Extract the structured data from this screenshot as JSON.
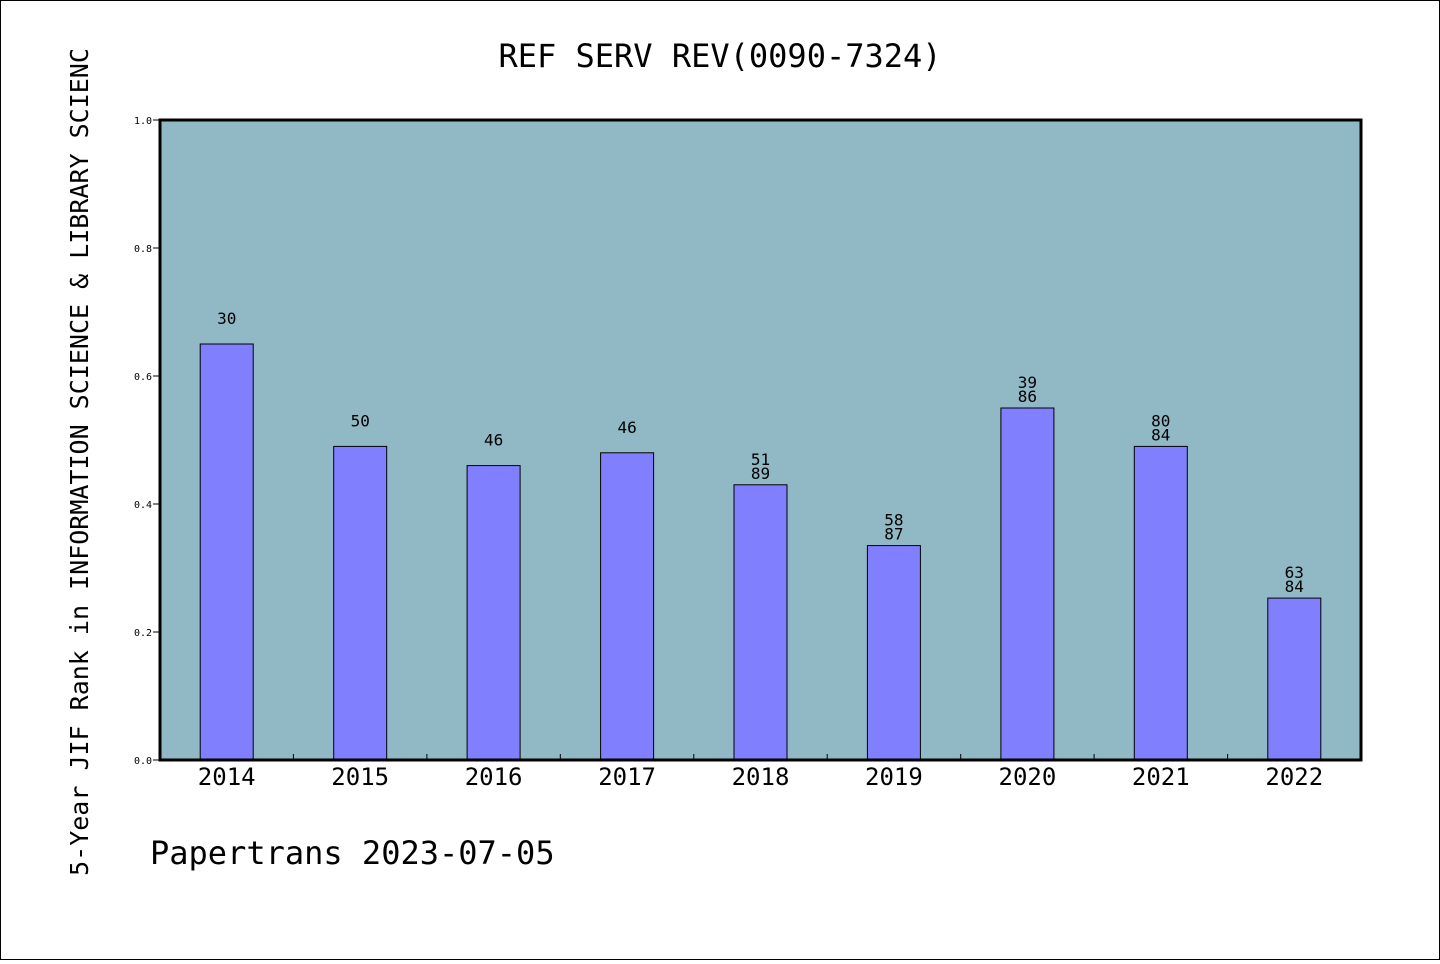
{
  "chart_data": {
    "type": "bar",
    "title": "REF SERV REV(0090-7324)",
    "ylabel": "5-Year JIF Rank in INFORMATION SCIENCE & LIBRARY SCIENC",
    "xlabel": "",
    "credit": "Papertrans 2023-07-05",
    "categories": [
      "2014",
      "2015",
      "2016",
      "2017",
      "2018",
      "2019",
      "2020",
      "2021",
      "2022"
    ],
    "values": [
      0.65,
      0.49,
      0.46,
      0.48,
      0.43,
      0.335,
      0.55,
      0.49,
      0.253
    ],
    "value_labels": [
      [
        "30"
      ],
      [
        "50"
      ],
      [
        "46"
      ],
      [
        "46"
      ],
      [
        "51",
        "89"
      ],
      [
        "58",
        "87"
      ],
      [
        "39",
        "86"
      ],
      [
        "80",
        "84"
      ],
      [
        "63",
        "84"
      ]
    ],
    "ylim": [
      0,
      1.0
    ],
    "yticks": [
      "0.0",
      "0.2",
      "0.4",
      "0.6",
      "0.8",
      "1.0"
    ],
    "grid": false,
    "colors": {
      "background": "#ffffff",
      "plot_background": "#91b8c5",
      "bar": "#8080ff",
      "bar_edge": "#000000",
      "text": "#000000"
    }
  }
}
